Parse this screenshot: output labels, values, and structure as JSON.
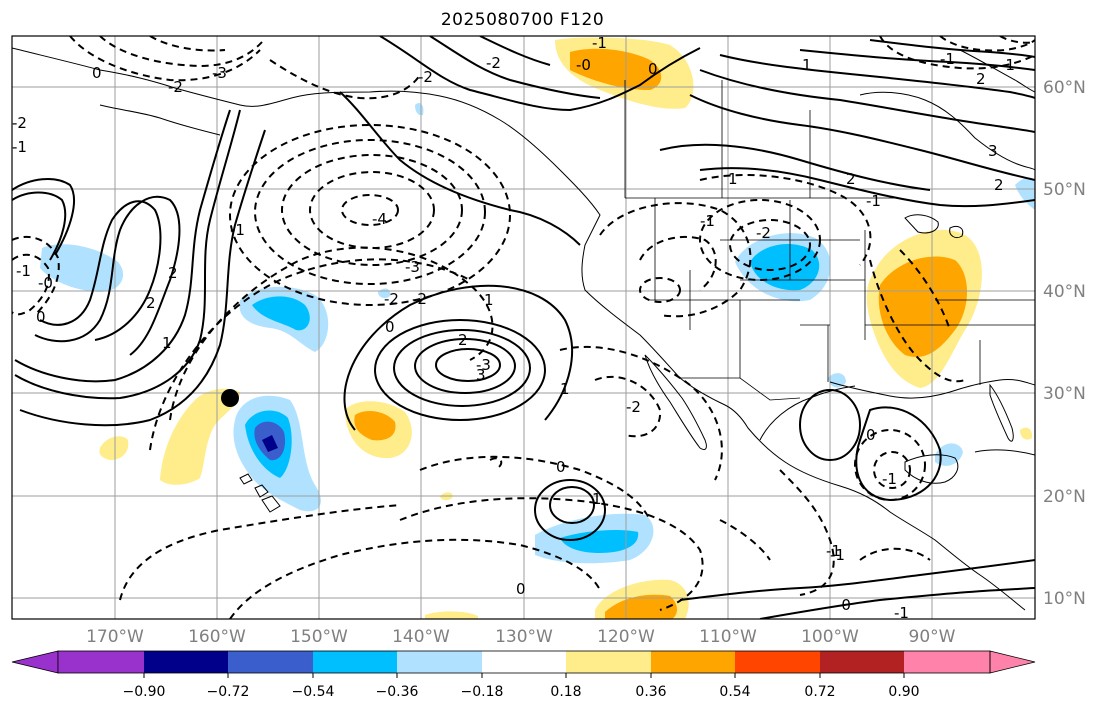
{
  "map": {
    "title": "2025080700 F120",
    "lon_labels": [
      "170°W",
      "160°W",
      "150°W",
      "140°W",
      "130°W",
      "120°W",
      "110°W",
      "100°W",
      "90°W"
    ],
    "lat_labels": [
      "60°N",
      "50°N",
      "40°N",
      "30°N",
      "20°N",
      "10°N"
    ],
    "contour_labels": [
      "-3",
      "-2",
      "-1",
      "0",
      "-4",
      "-3",
      "-2",
      "-2",
      "0",
      "-1",
      "-1",
      "2",
      "1",
      "2",
      "-1",
      "-2",
      "3",
      "2",
      "1",
      "-2",
      "-1",
      "-2",
      "0",
      "1",
      "-0",
      "0",
      "-2",
      "-1",
      "1",
      "0",
      "-1",
      "-1",
      "-0",
      "0",
      "1",
      "1",
      "-1",
      "-0",
      "-1",
      "2",
      "3",
      "2",
      "-3",
      "-2",
      "-1",
      "0",
      "2",
      "-1"
    ],
    "marker": "circle-marker",
    "colors": {
      "neg_090": "#9932cc",
      "neg_072": "#00008b",
      "neg_054": "#3a5fcd",
      "neg_036": "#00bfff",
      "neg_018": "#b0e2ff",
      "neutral": "#ffffff",
      "pos_018": "#ffec8b",
      "pos_036": "#ffa500",
      "pos_054": "#ff4500",
      "pos_072": "#b22222",
      "pos_090": "#ff82ab"
    }
  },
  "colorbar": {
    "ticks": [
      "−0.90",
      "−0.72",
      "−0.54",
      "−0.36",
      "−0.18",
      "0.18",
      "0.36",
      "0.54",
      "0.72",
      "0.90"
    ]
  }
}
